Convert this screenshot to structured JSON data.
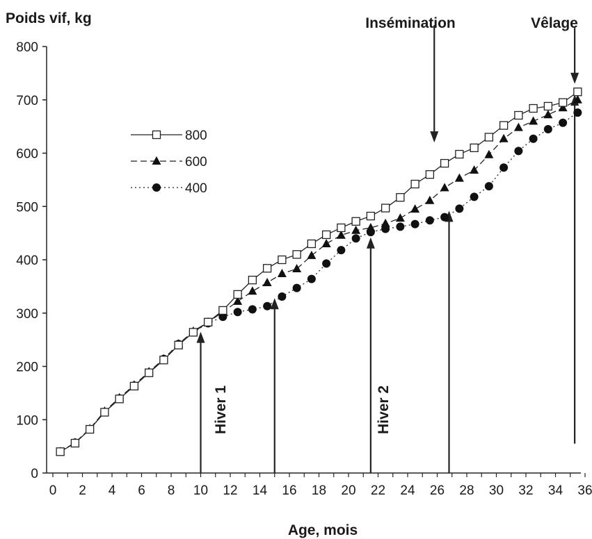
{
  "chart_data": {
    "type": "line",
    "ylabel": "Poids vif, kg",
    "xlabel": "Age, mois",
    "xlim": [
      0,
      37
    ],
    "ylim": [
      0,
      800
    ],
    "xticks": [
      0,
      2,
      4,
      6,
      8,
      10,
      12,
      14,
      16,
      18,
      20,
      22,
      24,
      26,
      28,
      30,
      32,
      34,
      36
    ],
    "yticks": [
      0,
      100,
      200,
      300,
      400,
      500,
      600,
      700,
      800
    ],
    "grid": false,
    "legend_position": "left",
    "series": [
      {
        "name": "800",
        "marker": "open-square",
        "line_style": "solid",
        "x": [
          0.5,
          1.5,
          2.5,
          3.5,
          4.5,
          5.5,
          6.5,
          7.5,
          8.5,
          9.5,
          10.5,
          11.5,
          12.5,
          13.5,
          14.5,
          15.5,
          16.5,
          17.5,
          18.5,
          19.5,
          20.5,
          21.5,
          22.5,
          23.5,
          24.5,
          25.5,
          26.5,
          27.5,
          28.5,
          29.5,
          30.5,
          31.5,
          32.5,
          33.5,
          34.5,
          35.5
        ],
        "y": [
          40,
          56,
          82,
          114,
          139,
          163,
          188,
          212,
          240,
          264,
          283,
          305,
          335,
          362,
          384,
          400,
          410,
          430,
          447,
          460,
          472,
          482,
          497,
          517,
          542,
          560,
          581,
          598,
          610,
          630,
          652,
          671,
          684,
          688,
          695,
          715
        ]
      },
      {
        "name": "600",
        "marker": "filled-triangle",
        "line_style": "dashed",
        "x": [
          0.5,
          1.5,
          2.5,
          3.5,
          4.5,
          5.5,
          6.5,
          7.5,
          8.5,
          9.5,
          10.5,
          11.5,
          12.5,
          13.5,
          14.5,
          15.5,
          16.5,
          17.5,
          18.5,
          19.5,
          20.5,
          21.5,
          22.5,
          23.5,
          24.5,
          25.5,
          26.5,
          27.5,
          28.5,
          29.5,
          30.5,
          31.5,
          32.5,
          33.5,
          34.5,
          35.5
        ],
        "y": [
          40,
          57,
          83,
          116,
          141,
          165,
          190,
          214,
          242,
          266,
          283,
          302,
          322,
          341,
          357,
          374,
          383,
          408,
          430,
          446,
          455,
          460,
          468,
          478,
          495,
          511,
          535,
          553,
          568,
          597,
          627,
          648,
          660,
          672,
          685,
          700
        ]
      },
      {
        "name": "400",
        "marker": "filled-circle",
        "line_style": "dotted",
        "x": [
          0.5,
          1.5,
          2.5,
          3.5,
          4.5,
          5.5,
          6.5,
          7.5,
          8.5,
          9.5,
          10.5,
          11.5,
          12.5,
          13.5,
          14.5,
          15.5,
          16.5,
          17.5,
          18.5,
          19.5,
          20.5,
          21.5,
          22.5,
          23.5,
          24.5,
          25.5,
          26.5,
          27.5,
          28.5,
          29.5,
          30.5,
          31.5,
          32.5,
          33.5,
          34.5,
          35.5
        ],
        "y": [
          40,
          57,
          82,
          114,
          140,
          164,
          188,
          214,
          242,
          264,
          281,
          293,
          302,
          307,
          313,
          331,
          347,
          364,
          393,
          418,
          440,
          452,
          458,
          462,
          467,
          474,
          480,
          496,
          518,
          538,
          573,
          604,
          627,
          645,
          657,
          676
        ]
      }
    ],
    "annotations": [
      {
        "text": "Hiver 1",
        "orientation": "vertical",
        "at_x": 11
      },
      {
        "text": "Hiver 2",
        "orientation": "vertical",
        "at_x": 24
      },
      {
        "text": "Insémination",
        "at_x": 26
      },
      {
        "text": "Vêlage",
        "at_x": 35.5
      }
    ],
    "arrows": [
      {
        "x": 10,
        "from_y": 0,
        "to_y": 265,
        "direction": "up"
      },
      {
        "x": 15,
        "from_y": 0,
        "to_y": 328,
        "direction": "up"
      },
      {
        "x": 21.5,
        "from_y": 0,
        "to_y": 442,
        "direction": "up"
      },
      {
        "x": 26.8,
        "from_y": 0,
        "to_y": 492,
        "direction": "up"
      },
      {
        "x": 35.3,
        "from_y": 55,
        "to_y": 710,
        "direction": "up"
      },
      {
        "x": 25.8,
        "from_y": 840,
        "to_y": 620,
        "direction": "down"
      },
      {
        "x": 35.3,
        "from_y": 835,
        "to_y": 730,
        "direction": "down"
      }
    ]
  }
}
